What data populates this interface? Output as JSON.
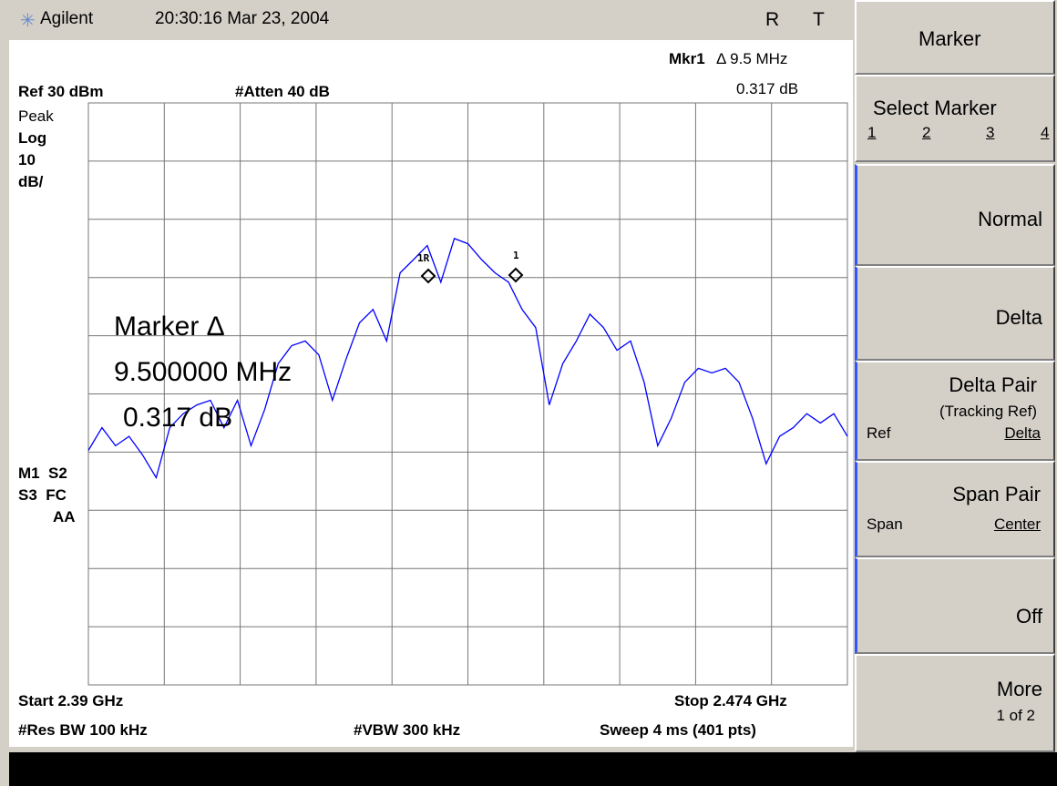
{
  "header": {
    "brand": "Agilent",
    "datetime": "20:30:16 Mar 23, 2004",
    "flags": [
      "R",
      "T"
    ]
  },
  "annotations": {
    "marker_label": "Mkr1",
    "marker_delta": "Δ 9.5 MHz",
    "marker_value": "0.317 dB",
    "ref": "Ref 30 dBm",
    "atten": "#Atten 40 dB",
    "detector": "Peak",
    "scale_type": "Log",
    "scale_value": "10",
    "scale_unit": "dB/",
    "status": [
      "M1  S2",
      "S3  FC",
      "AA"
    ],
    "start": "Start 2.39 GHz",
    "stop": "Stop 2.474 GHz",
    "rbw": "#Res BW 100 kHz",
    "vbw": "#VBW 300 kHz",
    "sweep": "Sweep 4 ms (401 pts)"
  },
  "marker_readout": [
    "Marker Δ",
    "9.500000 MHz",
    "0.317 dB"
  ],
  "markers": [
    "1R",
    "1"
  ],
  "softkeys": {
    "title": "Marker",
    "select_marker": {
      "label": "Select Marker",
      "options": [
        "1",
        "2",
        "3",
        "4"
      ]
    },
    "normal": "Normal",
    "delta": "Delta",
    "delta_pair": {
      "label": "Delta Pair",
      "sub": "(Tracking Ref)",
      "left": "Ref",
      "right": "Delta"
    },
    "span_pair": {
      "label": "Span Pair",
      "left": "Span",
      "right": "Center"
    },
    "off": "Off",
    "more": {
      "label": "More",
      "sub": "1 of 2"
    }
  },
  "chart_data": {
    "type": "line",
    "color": "#0000ff",
    "xlim": [
      2.39,
      2.474
    ],
    "xticks": [
      2.39,
      2.3984,
      2.4068,
      2.4152,
      2.4236,
      2.432,
      2.4404,
      2.4488,
      2.4572,
      2.4656,
      2.474
    ],
    "ylim": [
      -70,
      30
    ],
    "yticks": [
      -70,
      -60,
      -50,
      -40,
      -30,
      -20,
      -10,
      0,
      10,
      20,
      30
    ],
    "grid": true,
    "values": [
      -29.7,
      -25.8,
      -28.9,
      -27.3,
      -30.5,
      -34.4,
      -25.8,
      -23.4,
      -21.9,
      -21.1,
      -25.8,
      -21.1,
      -28.9,
      -22.7,
      -14.8,
      -11.7,
      -10.9,
      -13.3,
      -21.1,
      -14.1,
      -7.8,
      -5.5,
      -10.9,
      0.8,
      3.1,
      5.5,
      -0.8,
      6.7,
      5.8,
      3.1,
      0.8,
      -0.8,
      -5.5,
      -8.6,
      -21.9,
      -14.8,
      -10.9,
      -6.3,
      -8.6,
      -12.5,
      -10.9,
      -18.0,
      -28.9,
      -24.2,
      -18.0,
      -15.6,
      -16.4,
      -15.6,
      -18.0,
      -24.2,
      -32.0,
      -27.3,
      -25.8,
      -23.4,
      -25.0,
      -23.4,
      -27.3
    ]
  }
}
